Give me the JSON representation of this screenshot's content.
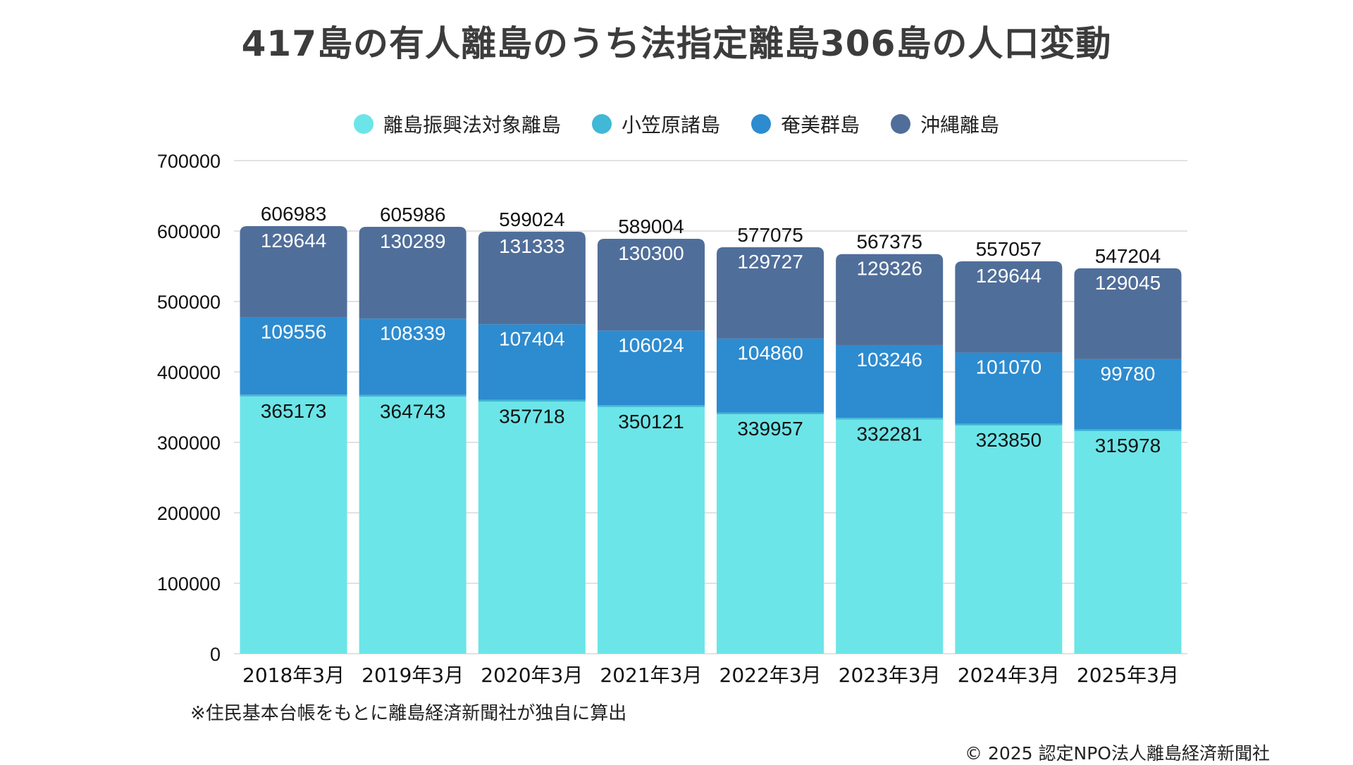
{
  "title": "417島の有人離島のうち法指定離島306島の人口変動",
  "note": "※住民基本台帳をもとに離島経済新聞社が独自に算出",
  "copyright": "© 2025 認定NPO法人離島経済新聞社",
  "chart_data": {
    "type": "bar",
    "stacked": true,
    "title": "417島の有人離島のうち法指定離島306島の人口変動",
    "xlabel": "",
    "ylabel": "",
    "ylim": [
      0,
      700000
    ],
    "yticks": [
      0,
      100000,
      200000,
      300000,
      400000,
      500000,
      600000,
      700000
    ],
    "grid": true,
    "legend_position": "top-center",
    "categories": [
      "2018年3月",
      "2019年3月",
      "2020年3月",
      "2021年3月",
      "2022年3月",
      "2023年3月",
      "2024年3月",
      "2025年3月"
    ],
    "series": [
      {
        "name": "離島振興法対象離島",
        "color": "#6ce5e8",
        "label_color": "#111111",
        "show_labels": true,
        "values": [
          365173,
          364743,
          357718,
          350121,
          339957,
          332281,
          323850,
          315978
        ]
      },
      {
        "name": "小笠原諸島",
        "color": "#41b8d5",
        "label_color": "#111111",
        "show_labels": false,
        "values": [
          2610,
          2615,
          2569,
          2559,
          2531,
          2522,
          2493,
          2401
        ]
      },
      {
        "name": "奄美群島",
        "color": "#2d8bcf",
        "label_color": "#ffffff",
        "show_labels": true,
        "values": [
          109556,
          108339,
          107404,
          106024,
          104860,
          103246,
          101070,
          99780
        ]
      },
      {
        "name": "沖縄離島",
        "color": "#506e9a",
        "label_color": "#ffffff",
        "show_labels": true,
        "values": [
          129644,
          130289,
          131333,
          130300,
          129727,
          129326,
          129644,
          129045
        ]
      }
    ],
    "totals": [
      606983,
      605986,
      599024,
      589004,
      577075,
      567375,
      557057,
      547204
    ]
  }
}
